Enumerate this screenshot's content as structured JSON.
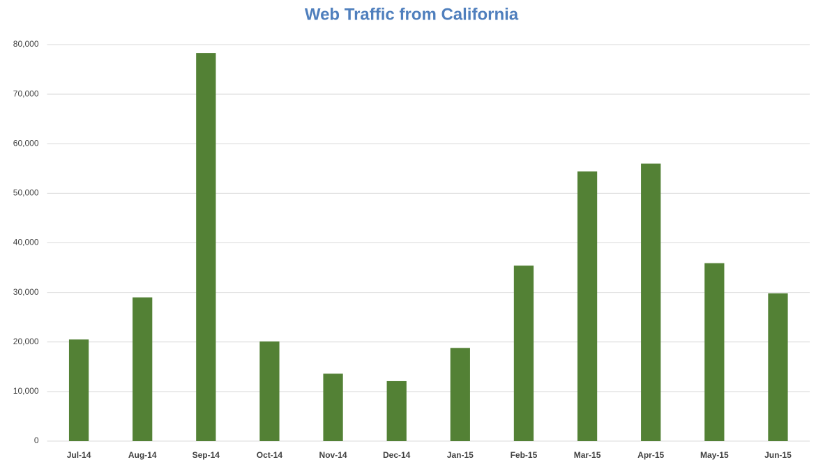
{
  "chart_data": {
    "type": "bar",
    "title": "Web Traffic from California",
    "categories": [
      "Jul-14",
      "Aug-14",
      "Sep-14",
      "Oct-14",
      "Nov-14",
      "Dec-14",
      "Jan-15",
      "Feb-15",
      "Mar-15",
      "Apr-15",
      "May-15",
      "Jun-15"
    ],
    "values": [
      20500,
      29000,
      78300,
      20100,
      13600,
      12100,
      18800,
      35400,
      54400,
      56000,
      35900,
      29800
    ],
    "color": "#538135",
    "ylim": [
      0,
      80000
    ],
    "yticks": [
      0,
      {
        "value": 10000,
        "label": "10,000"
      },
      {
        "value": 20000,
        "label": "20,000"
      },
      {
        "value": 30000,
        "label": "30,000"
      },
      {
        "value": 40000,
        "label": "40,000"
      },
      {
        "value": 50000,
        "label": "50,000"
      },
      {
        "value": 60000,
        "label": "60,000"
      },
      {
        "value": 70000,
        "label": "70,000"
      },
      {
        "value": 80000,
        "label": "80,000"
      }
    ],
    "grid": true
  }
}
